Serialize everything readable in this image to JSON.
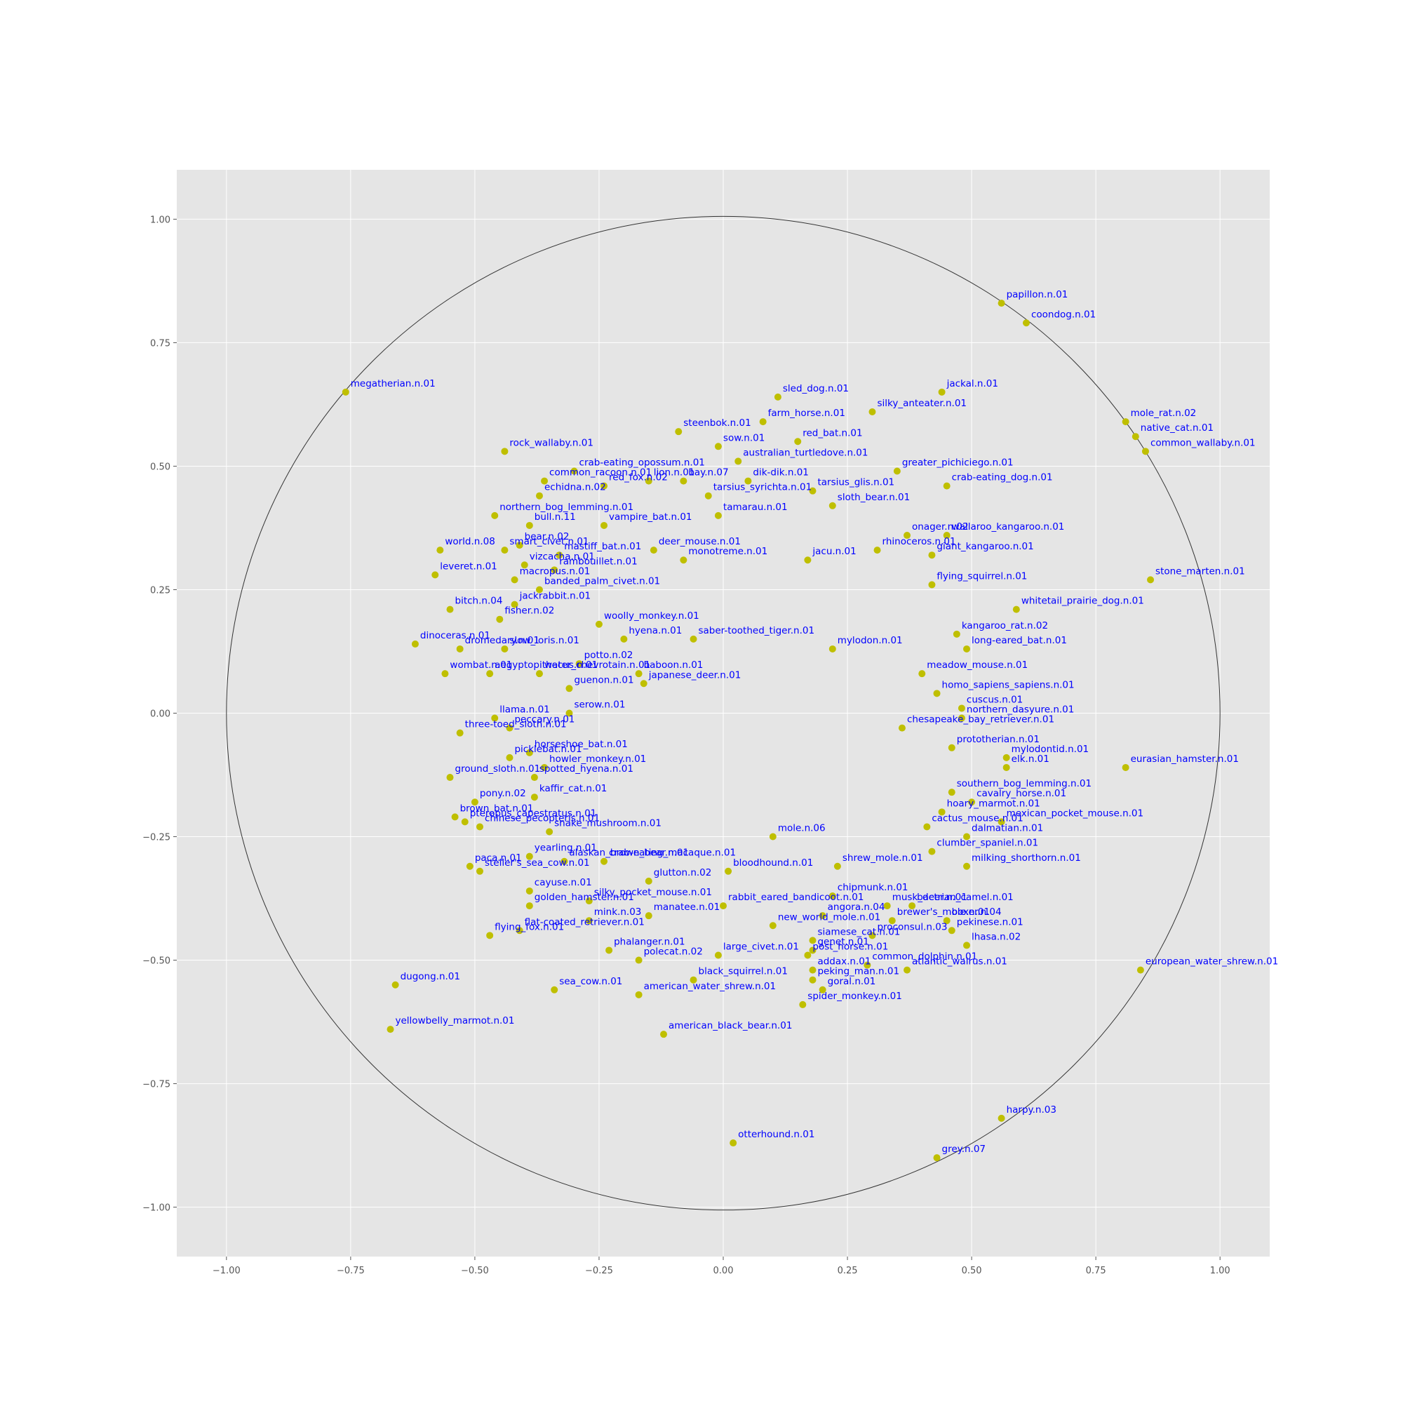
{
  "chart_data": {
    "type": "scatter",
    "title": "",
    "xlabel": "",
    "ylabel": "",
    "xlim": [
      -1.1,
      1.1
    ],
    "ylim": [
      -1.1,
      1.1
    ],
    "grid": true,
    "legend": "none",
    "unit_circle_radius": 1.0,
    "x_ticks": [
      -1.0,
      -0.75,
      -0.5,
      -0.25,
      0.0,
      0.25,
      0.5,
      0.75,
      1.0
    ],
    "y_ticks": [
      -1.0,
      -0.75,
      -0.5,
      -0.25,
      0.0,
      0.25,
      0.5,
      0.75,
      1.0
    ],
    "x_tick_labels": [
      "−1.00",
      "−0.75",
      "−0.50",
      "−0.25",
      "0.00",
      "0.25",
      "0.50",
      "0.75",
      "1.00"
    ],
    "y_tick_labels": [
      "−1.00",
      "−0.75",
      "−0.50",
      "−0.25",
      "0.00",
      "0.25",
      "0.50",
      "0.75",
      "1.00"
    ],
    "colors": {
      "background": "#e5e5e5",
      "grid": "#ffffff",
      "marker": "#bfbf00",
      "label": "#0000ff",
      "circle": "#333333"
    },
    "points": [
      {
        "label": "papillon.n.01",
        "x": 0.56,
        "y": 0.83
      },
      {
        "label": "coondog.n.01",
        "x": 0.61,
        "y": 0.79
      },
      {
        "label": "megatherian.n.01",
        "x": -0.76,
        "y": 0.65
      },
      {
        "label": "sled_dog.n.01",
        "x": 0.11,
        "y": 0.64
      },
      {
        "label": "jackal.n.01",
        "x": 0.44,
        "y": 0.65
      },
      {
        "label": "silky_anteater.n.01",
        "x": 0.3,
        "y": 0.61
      },
      {
        "label": "mole_rat.n.02",
        "x": 0.81,
        "y": 0.59
      },
      {
        "label": "native_cat.n.01",
        "x": 0.83,
        "y": 0.56
      },
      {
        "label": "common_wallaby.n.01",
        "x": 0.85,
        "y": 0.53
      },
      {
        "label": "steenbok.n.01",
        "x": -0.09,
        "y": 0.57
      },
      {
        "label": "farm_horse.n.01",
        "x": 0.08,
        "y": 0.59
      },
      {
        "label": "red_bat.n.01",
        "x": 0.15,
        "y": 0.55
      },
      {
        "label": "sow.n.01",
        "x": -0.01,
        "y": 0.54
      },
      {
        "label": "rock_wallaby.n.01",
        "x": -0.44,
        "y": 0.53
      },
      {
        "label": "australian_turtledove.n.01",
        "x": 0.03,
        "y": 0.51
      },
      {
        "label": "greater_pichiciego.n.01",
        "x": 0.35,
        "y": 0.49
      },
      {
        "label": "lion.n.01",
        "x": -0.15,
        "y": 0.47
      },
      {
        "label": "crab-eating_dog.n.01",
        "x": 0.45,
        "y": 0.46
      },
      {
        "label": "bay.n.07",
        "x": -0.08,
        "y": 0.47
      },
      {
        "label": "tarsius_glis.n.01",
        "x": 0.18,
        "y": 0.45
      },
      {
        "label": "dik-dik.n.01",
        "x": 0.05,
        "y": 0.47
      },
      {
        "label": "common_racoon.n.01",
        "x": -0.36,
        "y": 0.47
      },
      {
        "label": "echidna.n.02",
        "x": -0.37,
        "y": 0.44
      },
      {
        "label": "crab-eating_opossum.n.01",
        "x": -0.3,
        "y": 0.49
      },
      {
        "label": "red_fox.n.02",
        "x": -0.24,
        "y": 0.46
      },
      {
        "label": "tarsius_syrichta.n.01",
        "x": -0.03,
        "y": 0.44
      },
      {
        "label": "sloth_bear.n.01",
        "x": 0.22,
        "y": 0.42
      },
      {
        "label": "northern_bog_lemming.n.01",
        "x": -0.46,
        "y": 0.4
      },
      {
        "label": "bull.n.11",
        "x": -0.39,
        "y": 0.38
      },
      {
        "label": "vampire_bat.n.01",
        "x": -0.24,
        "y": 0.38
      },
      {
        "label": "tamarau.n.01",
        "x": -0.01,
        "y": 0.4
      },
      {
        "label": "onager.n.02",
        "x": 0.37,
        "y": 0.36
      },
      {
        "label": "wallaroo_kangaroo.n.01",
        "x": 0.45,
        "y": 0.36
      },
      {
        "label": "world.n.08",
        "x": -0.57,
        "y": 0.33
      },
      {
        "label": "bear.n.02",
        "x": -0.41,
        "y": 0.34
      },
      {
        "label": "smart_civet.n.01",
        "x": -0.44,
        "y": 0.33
      },
      {
        "label": "mastiff_bat.n.01",
        "x": -0.33,
        "y": 0.32
      },
      {
        "label": "deer_mouse.n.01",
        "x": -0.14,
        "y": 0.33
      },
      {
        "label": "rhinoceros.n.01",
        "x": 0.31,
        "y": 0.33
      },
      {
        "label": "giant_kangaroo.n.01",
        "x": 0.42,
        "y": 0.32
      },
      {
        "label": "leveret.n.01",
        "x": -0.58,
        "y": 0.28
      },
      {
        "label": "vizcacha.n.01",
        "x": -0.4,
        "y": 0.3
      },
      {
        "label": "rambouillet.n.01",
        "x": -0.34,
        "y": 0.29
      },
      {
        "label": "macropus.n.01",
        "x": -0.42,
        "y": 0.27
      },
      {
        "label": "monotreme.n.01",
        "x": -0.08,
        "y": 0.31
      },
      {
        "label": "jacu.n.01",
        "x": 0.17,
        "y": 0.31
      },
      {
        "label": "stone_marten.n.01",
        "x": 0.86,
        "y": 0.27
      },
      {
        "label": "flying_squirrel.n.01",
        "x": 0.42,
        "y": 0.26
      },
      {
        "label": "banded_palm_civet.n.01",
        "x": -0.37,
        "y": 0.25
      },
      {
        "label": "bitch.n.04",
        "x": -0.55,
        "y": 0.21
      },
      {
        "label": "jackrabbit.n.01",
        "x": -0.42,
        "y": 0.22
      },
      {
        "label": "fisher.n.02",
        "x": -0.45,
        "y": 0.19
      },
      {
        "label": "whitetail_prairie_dog.n.01",
        "x": 0.59,
        "y": 0.21
      },
      {
        "label": "woolly_monkey.n.01",
        "x": -0.25,
        "y": 0.18
      },
      {
        "label": "hyena.n.01",
        "x": -0.2,
        "y": 0.15
      },
      {
        "label": "saber-toothed_tiger.n.01",
        "x": -0.06,
        "y": 0.15
      },
      {
        "label": "dinoceras.n.01",
        "x": -0.62,
        "y": 0.14
      },
      {
        "label": "dromedary.n.01",
        "x": -0.53,
        "y": 0.13
      },
      {
        "label": "slow_loris.n.01",
        "x": -0.44,
        "y": 0.13
      },
      {
        "label": "mylodon.n.01",
        "x": 0.22,
        "y": 0.13
      },
      {
        "label": "long-eared_bat.n.01",
        "x": 0.49,
        "y": 0.13
      },
      {
        "label": "kangaroo_rat.n.02",
        "x": 0.47,
        "y": 0.16
      },
      {
        "label": "wombat.n.01",
        "x": -0.56,
        "y": 0.08
      },
      {
        "label": "aegyptopithecus.n.01",
        "x": -0.47,
        "y": 0.08
      },
      {
        "label": "water_chevrotain.n.01",
        "x": -0.37,
        "y": 0.08
      },
      {
        "label": "potto.n.02",
        "x": -0.29,
        "y": 0.1
      },
      {
        "label": "guenon.n.01",
        "x": -0.31,
        "y": 0.05
      },
      {
        "label": "baboon.n.01",
        "x": -0.17,
        "y": 0.08
      },
      {
        "label": "japanese_deer.n.01",
        "x": -0.16,
        "y": 0.06
      },
      {
        "label": "meadow_mouse.n.01",
        "x": 0.4,
        "y": 0.08
      },
      {
        "label": "homo_sapiens_sapiens.n.01",
        "x": 0.43,
        "y": 0.04
      },
      {
        "label": "llama.n.01",
        "x": -0.46,
        "y": -0.01
      },
      {
        "label": "serow.n.01",
        "x": -0.31,
        "y": 0.0
      },
      {
        "label": "three-toed_sloth.n.01",
        "x": -0.53,
        "y": -0.04
      },
      {
        "label": "peccary.n.01",
        "x": -0.43,
        "y": -0.03
      },
      {
        "label": "cuscus.n.01",
        "x": 0.48,
        "y": 0.01
      },
      {
        "label": "northern_dasyure.n.01",
        "x": 0.48,
        "y": -0.01
      },
      {
        "label": "chesapeake_bay_retriever.n.01",
        "x": 0.36,
        "y": -0.03
      },
      {
        "label": "horseshoe_bat.n.01",
        "x": -0.39,
        "y": -0.08
      },
      {
        "label": "picklebat.n.01",
        "x": -0.43,
        "y": -0.09
      },
      {
        "label": "howler_monkey.n.01",
        "x": -0.36,
        "y": -0.11
      },
      {
        "label": "prototherian.n.01",
        "x": 0.46,
        "y": -0.07
      },
      {
        "label": "mylodontid.n.01",
        "x": 0.57,
        "y": -0.09
      },
      {
        "label": "elk.n.01",
        "x": 0.57,
        "y": -0.11
      },
      {
        "label": "eurasian_hamster.n.01",
        "x": 0.81,
        "y": -0.11
      },
      {
        "label": "ground_sloth.n.01",
        "x": -0.55,
        "y": -0.13
      },
      {
        "label": "spotted_hyena.n.01",
        "x": -0.38,
        "y": -0.13
      },
      {
        "label": "kaffir_cat.n.01",
        "x": -0.38,
        "y": -0.17
      },
      {
        "label": "southern_bog_lemming.n.01",
        "x": 0.46,
        "y": -0.16
      },
      {
        "label": "cavalry_horse.n.01",
        "x": 0.5,
        "y": -0.18
      },
      {
        "label": "pony.n.02",
        "x": -0.5,
        "y": -0.18
      },
      {
        "label": "brown_bat.n.01",
        "x": -0.54,
        "y": -0.21
      },
      {
        "label": "hoary_marmot.n.01",
        "x": 0.44,
        "y": -0.2
      },
      {
        "label": "mexican_pocket_mouse.n.01",
        "x": 0.56,
        "y": -0.22
      },
      {
        "label": "pteropus_capestratus.n.01",
        "x": -0.52,
        "y": -0.22
      },
      {
        "label": "chinese_pecopteris.n.01",
        "x": -0.49,
        "y": -0.23
      },
      {
        "label": "snake_mushroom.n.01",
        "x": -0.35,
        "y": -0.24
      },
      {
        "label": "mole.n.06",
        "x": 0.1,
        "y": -0.25
      },
      {
        "label": "cactus_mouse.n.01",
        "x": 0.41,
        "y": -0.23
      },
      {
        "label": "dalmatian.n.01",
        "x": 0.49,
        "y": -0.25
      },
      {
        "label": "clumber_spaniel.n.01",
        "x": 0.42,
        "y": -0.28
      },
      {
        "label": "yearling.n.01",
        "x": -0.39,
        "y": -0.29
      },
      {
        "label": "alaskan_brown_bear.n.01",
        "x": -0.32,
        "y": -0.3
      },
      {
        "label": "crab-eating_macaque.n.01",
        "x": -0.24,
        "y": -0.3
      },
      {
        "label": "paca.n.01",
        "x": -0.51,
        "y": -0.31
      },
      {
        "label": "steller's_sea_cow.n.01",
        "x": -0.49,
        "y": -0.32
      },
      {
        "label": "bloodhound.n.01",
        "x": 0.01,
        "y": -0.32
      },
      {
        "label": "shrew_mole.n.01",
        "x": 0.23,
        "y": -0.31
      },
      {
        "label": "milking_shorthorn.n.01",
        "x": 0.49,
        "y": -0.31
      },
      {
        "label": "cayuse.n.01",
        "x": -0.39,
        "y": -0.36
      },
      {
        "label": "glutton.n.02",
        "x": -0.15,
        "y": -0.34
      },
      {
        "label": "silky_pocket_mouse.n.01",
        "x": -0.27,
        "y": -0.38
      },
      {
        "label": "rabbit_eared_bandicoot.n.01",
        "x": 0.0,
        "y": -0.39
      },
      {
        "label": "chipmunk.n.01",
        "x": 0.22,
        "y": -0.37
      },
      {
        "label": "musk_deer.n.01",
        "x": 0.33,
        "y": -0.39
      },
      {
        "label": "bactrian_camel.n.01",
        "x": 0.38,
        "y": -0.39
      },
      {
        "label": "golden_hamster.n.01",
        "x": -0.39,
        "y": -0.39
      },
      {
        "label": "angora.n.04",
        "x": 0.2,
        "y": -0.41
      },
      {
        "label": "brewer's_mole.n.01",
        "x": 0.34,
        "y": -0.42
      },
      {
        "label": "boxer.n.04",
        "x": 0.45,
        "y": -0.42
      },
      {
        "label": "pekinese.n.01",
        "x": 0.46,
        "y": -0.44
      },
      {
        "label": "mink.n.03",
        "x": -0.27,
        "y": -0.42
      },
      {
        "label": "manatee.n.01",
        "x": -0.15,
        "y": -0.41
      },
      {
        "label": "new_world_mole.n.01",
        "x": 0.1,
        "y": -0.43
      },
      {
        "label": "flat-coated_retriever.n.01",
        "x": -0.41,
        "y": -0.44
      },
      {
        "label": "flying_fox.n.01",
        "x": -0.47,
        "y": -0.45
      },
      {
        "label": "proconsul.n.03",
        "x": 0.3,
        "y": -0.45
      },
      {
        "label": "lhasa.n.02",
        "x": 0.49,
        "y": -0.47
      },
      {
        "label": "siamese_cat.n.01",
        "x": 0.18,
        "y": -0.46
      },
      {
        "label": "genet.n.01",
        "x": 0.18,
        "y": -0.48
      },
      {
        "label": "phalanger.n.01",
        "x": -0.23,
        "y": -0.48
      },
      {
        "label": "polecat.n.02",
        "x": -0.17,
        "y": -0.5
      },
      {
        "label": "large_civet.n.01",
        "x": -0.01,
        "y": -0.49
      },
      {
        "label": "post_horse.n.01",
        "x": 0.17,
        "y": -0.49
      },
      {
        "label": "common_dolphin.n.01",
        "x": 0.29,
        "y": -0.51
      },
      {
        "label": "atlantic_walrus.n.01",
        "x": 0.37,
        "y": -0.52
      },
      {
        "label": "addax.n.01",
        "x": 0.18,
        "y": -0.52
      },
      {
        "label": "peking_man.n.01",
        "x": 0.18,
        "y": -0.54
      },
      {
        "label": "european_water_shrew.n.01",
        "x": 0.84,
        "y": -0.52
      },
      {
        "label": "dugong.n.01",
        "x": -0.66,
        "y": -0.55
      },
      {
        "label": "sea_cow.n.01",
        "x": -0.34,
        "y": -0.56
      },
      {
        "label": "black_squirrel.n.01",
        "x": -0.06,
        "y": -0.54
      },
      {
        "label": "american_water_shrew.n.01",
        "x": -0.17,
        "y": -0.57
      },
      {
        "label": "goral.n.01",
        "x": 0.2,
        "y": -0.56
      },
      {
        "label": "spider_monkey.n.01",
        "x": 0.16,
        "y": -0.59
      },
      {
        "label": "american_black_bear.n.01",
        "x": -0.12,
        "y": -0.65
      },
      {
        "label": "yellowbelly_marmot.n.01",
        "x": -0.67,
        "y": -0.64
      },
      {
        "label": "harpy.n.03",
        "x": 0.56,
        "y": -0.82
      },
      {
        "label": "otterhound.n.01",
        "x": 0.02,
        "y": -0.87
      },
      {
        "label": "grey.n.07",
        "x": 0.43,
        "y": -0.9
      }
    ]
  }
}
